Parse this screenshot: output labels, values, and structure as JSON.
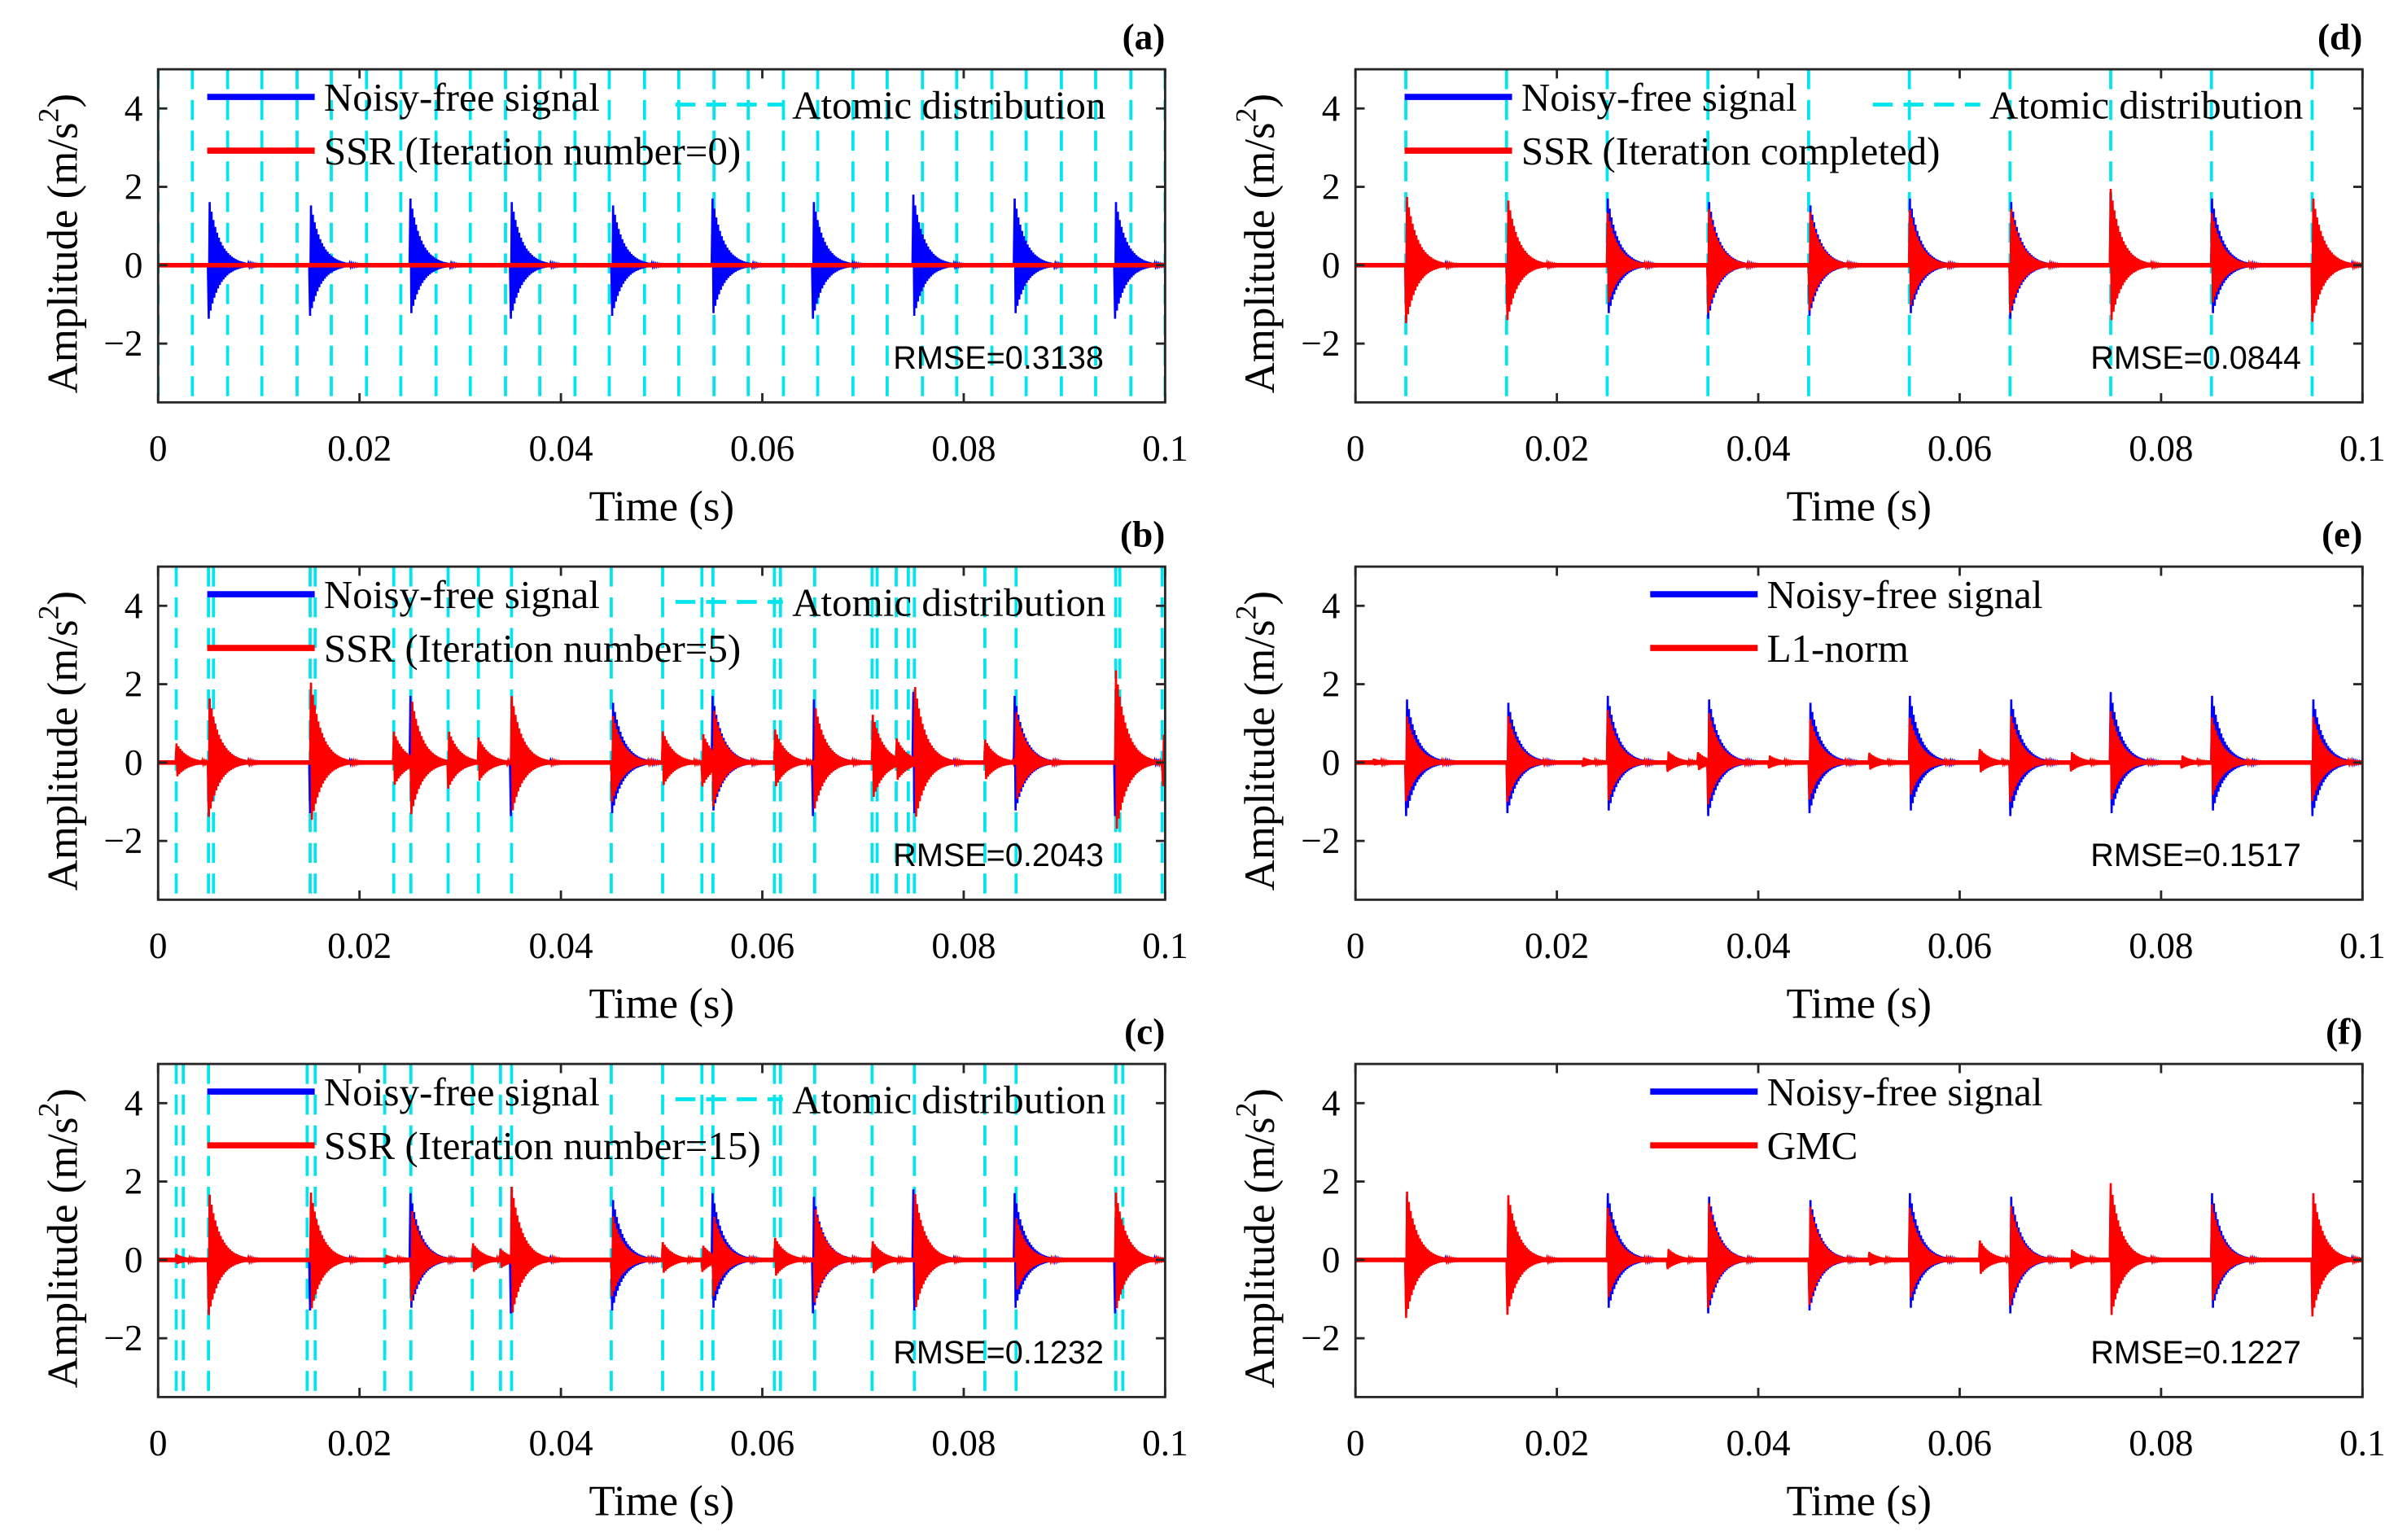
{
  "colors": {
    "noise_free": "#0000ff",
    "reconstruction": "#ff0000",
    "atoms": "#00e5ee",
    "axis": "#262626"
  },
  "common": {
    "xlabel": "Time (s)",
    "ylabel_main": "Amplitude (m/s",
    "ylabel_sup": "2",
    "ylabel_end": ")",
    "xticks": [
      0,
      0.02,
      0.04,
      0.06,
      0.08,
      0.1
    ],
    "xtick_labels": [
      "0",
      "0.02",
      "0.04",
      "0.06",
      "0.08",
      "0.1"
    ],
    "yticks": [
      -2,
      0,
      2,
      4
    ],
    "ytick_labels": [
      "−2",
      "0",
      "2",
      "4"
    ],
    "xlim": [
      0,
      0.1
    ],
    "ylim": [
      -3.5,
      5
    ]
  },
  "chart_data": [
    {
      "type": "line",
      "panel_label": "(a)",
      "rmse": "RMSE=0.3138",
      "legend": [
        "Noisy-free signal",
        "SSR (Iteration number=0)",
        "Atomic distribution"
      ],
      "atoms": [
        0,
        0.0034,
        0.0069,
        0.0103,
        0.0138,
        0.0172,
        0.0207,
        0.0241,
        0.0276,
        0.031,
        0.0345,
        0.0379,
        0.0414,
        0.0448,
        0.0483,
        0.0517,
        0.0552,
        0.0586,
        0.0621,
        0.0655,
        0.069,
        0.0724,
        0.0759,
        0.0793,
        0.0828,
        0.0862,
        0.0897,
        0.0931,
        0.0966,
        0.1
      ],
      "noise_free_impulses": [
        [
          0.005,
          1.8
        ],
        [
          0.015,
          1.8
        ],
        [
          0.025,
          1.8
        ],
        [
          0.035,
          1.8
        ],
        [
          0.045,
          1.8
        ],
        [
          0.055,
          1.8
        ],
        [
          0.065,
          1.8
        ],
        [
          0.075,
          1.8
        ],
        [
          0.085,
          1.8
        ],
        [
          0.095,
          1.8
        ]
      ],
      "reconstruction_impulses": []
    },
    {
      "type": "line",
      "panel_label": "(b)",
      "rmse": "RMSE=0.2043",
      "legend": [
        "Noisy-free signal",
        "SSR (Iteration number=5)",
        "Atomic distribution"
      ],
      "atoms": [
        0.0018,
        0.005,
        0.0055,
        0.0151,
        0.0156,
        0.0234,
        0.0251,
        0.0288,
        0.0318,
        0.0351,
        0.045,
        0.0501,
        0.054,
        0.0551,
        0.0612,
        0.0618,
        0.0652,
        0.0709,
        0.0714,
        0.0733,
        0.0745,
        0.0751,
        0.0821,
        0.0852,
        0.0951,
        0.0955,
        0.0997
      ],
      "noise_free_impulses": [
        [
          0.005,
          1.8
        ],
        [
          0.015,
          1.8
        ],
        [
          0.025,
          1.8
        ],
        [
          0.035,
          1.8
        ],
        [
          0.045,
          1.8
        ],
        [
          0.055,
          1.8
        ],
        [
          0.065,
          1.8
        ],
        [
          0.075,
          1.8
        ],
        [
          0.085,
          1.8
        ],
        [
          0.095,
          1.8
        ]
      ],
      "reconstruction_impulses": [
        [
          0.0018,
          0.5
        ],
        [
          0.005,
          1.8
        ],
        [
          0.0151,
          2.2
        ],
        [
          0.0234,
          0.8
        ],
        [
          0.0251,
          1.6
        ],
        [
          0.0288,
          0.8
        ],
        [
          0.0318,
          0.6
        ],
        [
          0.0351,
          1.7
        ],
        [
          0.045,
          1.4
        ],
        [
          0.0501,
          0.8
        ],
        [
          0.054,
          0.8
        ],
        [
          0.0551,
          1.2
        ],
        [
          0.0612,
          0.9
        ],
        [
          0.0652,
          1.5
        ],
        [
          0.0709,
          1.3
        ],
        [
          0.0733,
          0.5
        ],
        [
          0.0751,
          1.95
        ],
        [
          0.0821,
          0.6
        ],
        [
          0.0852,
          1.3
        ],
        [
          0.0951,
          2.4
        ],
        [
          0.0997,
          0.8
        ]
      ]
    },
    {
      "type": "line",
      "panel_label": "(c)",
      "rmse": "RMSE=0.1232",
      "legend": [
        "Noisy-free signal",
        "SSR (Iteration number=15)",
        "Atomic distribution"
      ],
      "atoms": [
        0.0018,
        0.0025,
        0.005,
        0.0148,
        0.0156,
        0.0225,
        0.0251,
        0.0312,
        0.034,
        0.0351,
        0.045,
        0.0501,
        0.054,
        0.0551,
        0.0612,
        0.0618,
        0.0652,
        0.0709,
        0.0751,
        0.0821,
        0.0852,
        0.0951,
        0.0958
      ],
      "noise_free_impulses": [
        [
          0.005,
          1.8
        ],
        [
          0.015,
          1.8
        ],
        [
          0.025,
          1.8
        ],
        [
          0.035,
          1.8
        ],
        [
          0.045,
          1.8
        ],
        [
          0.055,
          1.8
        ],
        [
          0.065,
          1.8
        ],
        [
          0.075,
          1.8
        ],
        [
          0.085,
          1.8
        ],
        [
          0.095,
          1.8
        ]
      ],
      "reconstruction_impulses": [
        [
          0.0018,
          0.15
        ],
        [
          0.005,
          1.85
        ],
        [
          0.0151,
          1.85
        ],
        [
          0.0225,
          0.15
        ],
        [
          0.0251,
          1.4
        ],
        [
          0.0312,
          0.45
        ],
        [
          0.034,
          0.25
        ],
        [
          0.0351,
          1.8
        ],
        [
          0.045,
          1.3
        ],
        [
          0.0501,
          0.45
        ],
        [
          0.054,
          0.4
        ],
        [
          0.0551,
          1.1
        ],
        [
          0.0612,
          0.6
        ],
        [
          0.0652,
          1.4
        ],
        [
          0.0709,
          0.5
        ],
        [
          0.0751,
          1.8
        ],
        [
          0.0852,
          1.1
        ],
        [
          0.0951,
          1.75
        ]
      ]
    },
    {
      "type": "line",
      "panel_label": "(d)",
      "rmse": "RMSE=0.0844",
      "legend": [
        "Noisy-free signal",
        "SSR (Iteration completed)",
        "Atomic distribution"
      ],
      "atoms": [
        0.005,
        0.015,
        0.025,
        0.035,
        0.045,
        0.055,
        0.065,
        0.075,
        0.085,
        0.095
      ],
      "noise_free_impulses": [
        [
          0.005,
          1.8
        ],
        [
          0.015,
          1.8
        ],
        [
          0.025,
          1.8
        ],
        [
          0.035,
          1.8
        ],
        [
          0.045,
          1.8
        ],
        [
          0.055,
          1.8
        ],
        [
          0.065,
          1.8
        ],
        [
          0.075,
          1.8
        ],
        [
          0.085,
          1.8
        ],
        [
          0.095,
          1.8
        ]
      ],
      "reconstruction_impulses": [
        [
          0.005,
          1.95
        ],
        [
          0.015,
          1.95
        ],
        [
          0.025,
          1.4
        ],
        [
          0.035,
          1.6
        ],
        [
          0.045,
          1.6
        ],
        [
          0.055,
          1.5
        ],
        [
          0.065,
          1.6
        ],
        [
          0.075,
          1.95
        ],
        [
          0.085,
          1.4
        ],
        [
          0.095,
          1.9
        ]
      ]
    },
    {
      "type": "line",
      "panel_label": "(e)",
      "rmse": "RMSE=0.1517",
      "legend": [
        "Noisy-free signal",
        "L1-norm"
      ],
      "atoms": [],
      "noise_free_impulses": [
        [
          0.005,
          1.8
        ],
        [
          0.015,
          1.8
        ],
        [
          0.025,
          1.8
        ],
        [
          0.035,
          1.8
        ],
        [
          0.045,
          1.8
        ],
        [
          0.055,
          1.8
        ],
        [
          0.065,
          1.8
        ],
        [
          0.075,
          1.8
        ],
        [
          0.085,
          1.8
        ],
        [
          0.095,
          1.8
        ]
      ],
      "reconstruction_impulses": [
        [
          0.0018,
          0.1
        ],
        [
          0.005,
          1.3
        ],
        [
          0.015,
          1.4
        ],
        [
          0.0225,
          0.15
        ],
        [
          0.025,
          1.4
        ],
        [
          0.031,
          0.3
        ],
        [
          0.034,
          0.25
        ],
        [
          0.035,
          1.3
        ],
        [
          0.041,
          0.2
        ],
        [
          0.045,
          1.3
        ],
        [
          0.051,
          0.25
        ],
        [
          0.055,
          1.2
        ],
        [
          0.062,
          0.35
        ],
        [
          0.065,
          1.3
        ],
        [
          0.071,
          0.3
        ],
        [
          0.075,
          1.3
        ],
        [
          0.082,
          0.2
        ],
        [
          0.085,
          1.2
        ],
        [
          0.095,
          1.3
        ]
      ]
    },
    {
      "type": "line",
      "panel_label": "(f)",
      "rmse": "RMSE=0.1227",
      "legend": [
        "Noisy-free signal",
        "GMC"
      ],
      "atoms": [],
      "noise_free_impulses": [
        [
          0.005,
          1.8
        ],
        [
          0.015,
          1.8
        ],
        [
          0.025,
          1.8
        ],
        [
          0.035,
          1.8
        ],
        [
          0.045,
          1.8
        ],
        [
          0.055,
          1.8
        ],
        [
          0.065,
          1.8
        ],
        [
          0.075,
          1.8
        ],
        [
          0.085,
          1.8
        ],
        [
          0.095,
          1.8
        ]
      ],
      "reconstruction_impulses": [
        [
          0.005,
          1.95
        ],
        [
          0.015,
          1.95
        ],
        [
          0.025,
          1.4
        ],
        [
          0.031,
          0.3
        ],
        [
          0.035,
          1.6
        ],
        [
          0.045,
          1.6
        ],
        [
          0.051,
          0.2
        ],
        [
          0.055,
          1.4
        ],
        [
          0.062,
          0.5
        ],
        [
          0.065,
          1.5
        ],
        [
          0.071,
          0.3
        ],
        [
          0.075,
          1.95
        ],
        [
          0.085,
          1.5
        ],
        [
          0.095,
          1.9
        ]
      ]
    }
  ]
}
